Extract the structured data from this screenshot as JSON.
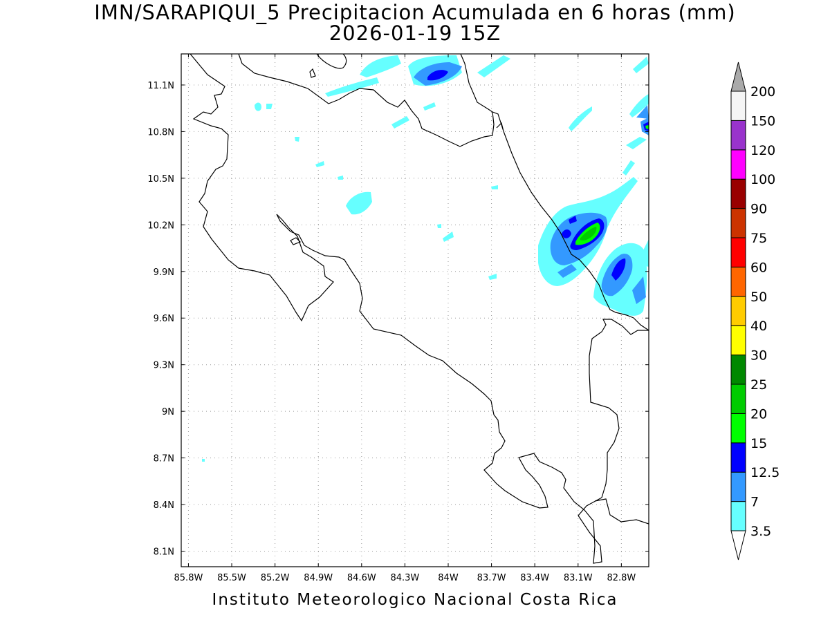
{
  "title": {
    "line1": "IMN/SARAPIQUI_5 Precipitacion Acumulada en 6 horas (mm)",
    "line2": "2026-01-19 15Z"
  },
  "footer": "Instituto Meteorologico Nacional Costa Rica",
  "map": {
    "lon_ticks": [
      {
        "value": -85.8,
        "label": "85.8W"
      },
      {
        "value": -85.5,
        "label": "85.5W"
      },
      {
        "value": -85.2,
        "label": "85.2W"
      },
      {
        "value": -84.9,
        "label": "84.9W"
      },
      {
        "value": -84.6,
        "label": "84.6W"
      },
      {
        "value": -84.3,
        "label": "84.3W"
      },
      {
        "value": -84.0,
        "label": "84W"
      },
      {
        "value": -83.7,
        "label": "83.7W"
      },
      {
        "value": -83.4,
        "label": "83.4W"
      },
      {
        "value": -83.1,
        "label": "83.1W"
      },
      {
        "value": -82.8,
        "label": "82.8W"
      }
    ],
    "lat_ticks": [
      {
        "value": 11.1,
        "label": "11.1N"
      },
      {
        "value": 10.8,
        "label": "10.8N"
      },
      {
        "value": 10.5,
        "label": "10.5N"
      },
      {
        "value": 10.2,
        "label": "10.2N"
      },
      {
        "value": 9.9,
        "label": "9.9N"
      },
      {
        "value": 9.6,
        "label": "9.6N"
      },
      {
        "value": 9.3,
        "label": "9.3N"
      },
      {
        "value": 9.0,
        "label": "9N"
      },
      {
        "value": 8.7,
        "label": "8.7N"
      },
      {
        "value": 8.4,
        "label": "8.4N"
      },
      {
        "value": 8.1,
        "label": "8.1N"
      }
    ],
    "grid": "dotted",
    "lon_range": [
      -85.85,
      -82.61
    ],
    "lat_range": [
      8.0,
      11.3
    ]
  },
  "colorbar": {
    "levels": [
      {
        "label": "3.5",
        "color": "#66ffff"
      },
      {
        "label": "7",
        "color": "#3399ff"
      },
      {
        "label": "12.5",
        "color": "#0000ff"
      },
      {
        "label": "15",
        "color": "#00ff00"
      },
      {
        "label": "20",
        "color": "#00cc00"
      },
      {
        "label": "25",
        "color": "#008800"
      },
      {
        "label": "30",
        "color": "#ffff00"
      },
      {
        "label": "40",
        "color": "#ffcc00"
      },
      {
        "label": "50",
        "color": "#ff6600"
      },
      {
        "label": "60",
        "color": "#ff0000"
      },
      {
        "label": "75",
        "color": "#cc3300"
      },
      {
        "label": "90",
        "color": "#990000"
      },
      {
        "label": "100",
        "color": "#ff00ff"
      },
      {
        "label": "120",
        "color": "#9933cc"
      },
      {
        "label": "150",
        "color": "#f5f5f5"
      },
      {
        "label": "200",
        "color": "#aaaaaa"
      }
    ],
    "top_triangle_color": "#aaaaaa",
    "bottom_triangle_color": "#ffffff"
  }
}
